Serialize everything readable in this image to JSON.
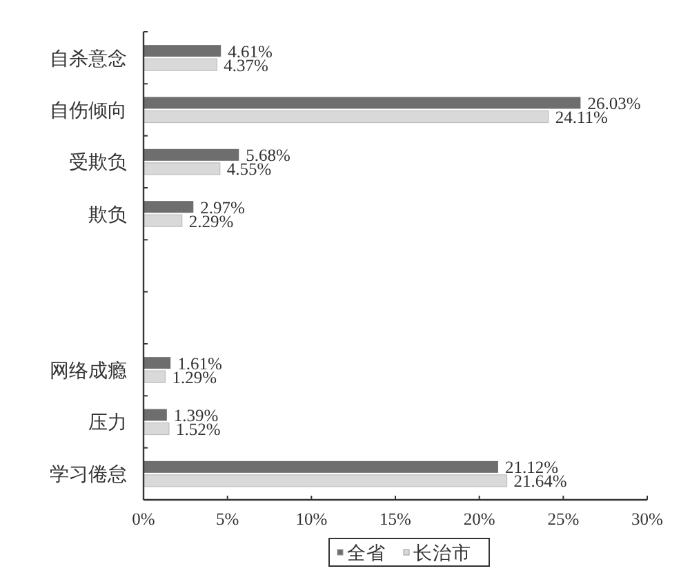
{
  "chart_data": {
    "type": "bar",
    "orientation": "horizontal",
    "categories": [
      "自杀意念",
      "自伤倾向",
      "受欺负",
      "欺负",
      null,
      null,
      "网络成瘾",
      "压力",
      "学习倦怠"
    ],
    "series": [
      {
        "name": "全省",
        "color": "#6e6e6e",
        "values": [
          4.61,
          26.03,
          5.68,
          2.97,
          null,
          null,
          1.61,
          1.39,
          21.12
        ],
        "value_labels": [
          "4.61%",
          "26.03%",
          "5.68%",
          "2.97%",
          null,
          null,
          "1.61%",
          "1.39%",
          "21.12%"
        ]
      },
      {
        "name": "长治市",
        "color": "#d9d9d9",
        "values": [
          4.37,
          24.11,
          4.55,
          2.29,
          null,
          null,
          1.29,
          1.52,
          21.64
        ],
        "value_labels": [
          "4.37%",
          "24.11%",
          "4.55%",
          "2.29%",
          null,
          null,
          "1.29%",
          "1.52%",
          "21.64%"
        ]
      }
    ],
    "xlim": [
      0,
      30
    ],
    "xticks": [
      {
        "value": 0,
        "label": "0%"
      },
      {
        "value": 5,
        "label": "5%"
      },
      {
        "value": 10,
        "label": "10%"
      },
      {
        "value": 15,
        "label": "15%"
      },
      {
        "value": 20,
        "label": "20%"
      },
      {
        "value": 25,
        "label": "25%"
      },
      {
        "value": 30,
        "label": "30%"
      }
    ],
    "grid": false,
    "legend": "bottom"
  }
}
